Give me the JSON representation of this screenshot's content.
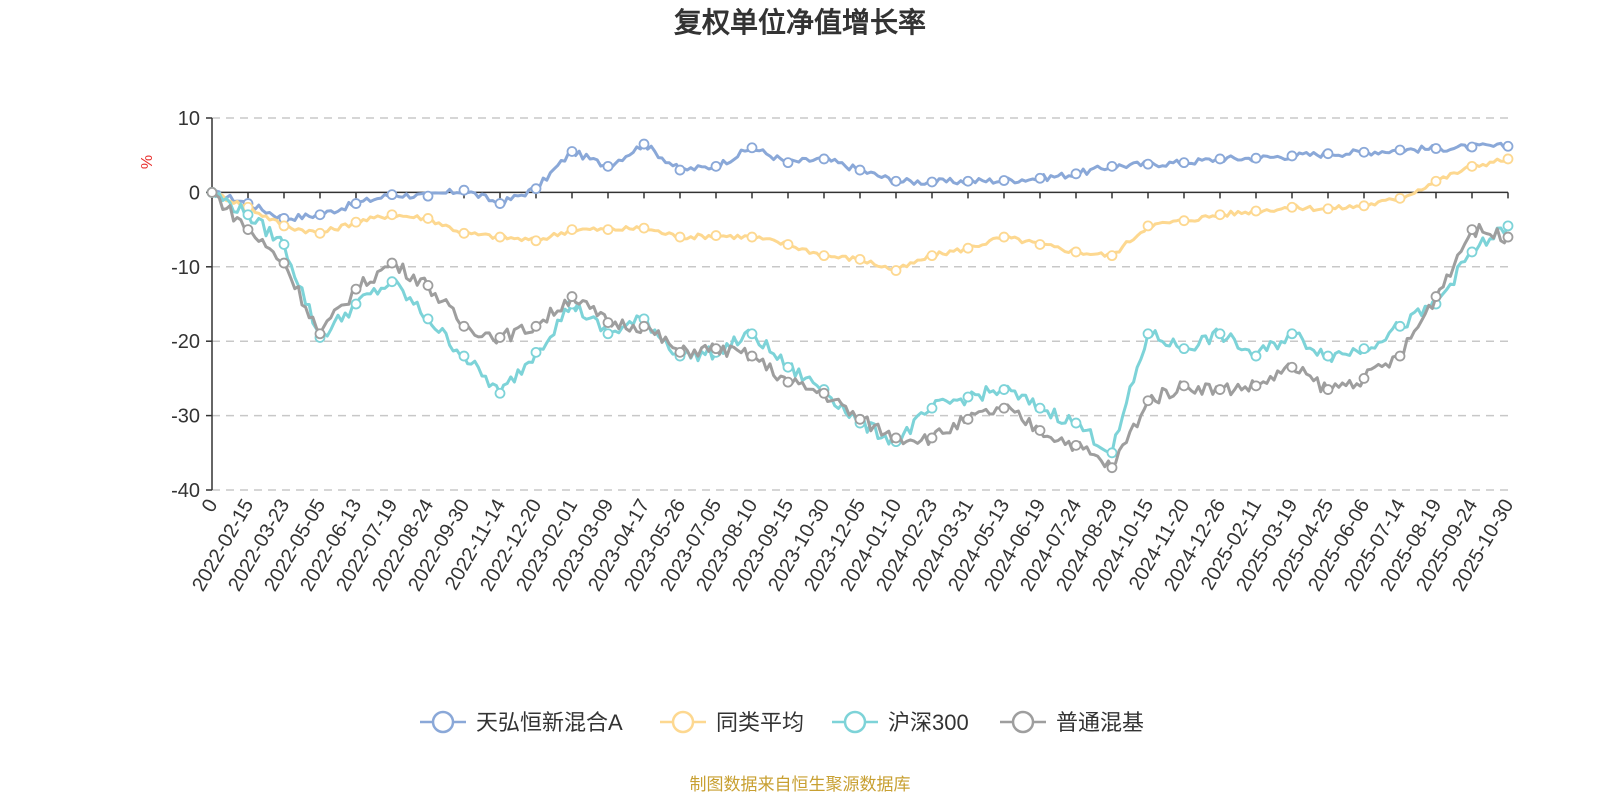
{
  "chart_data": {
    "type": "line",
    "title": "复权单位净值增长率",
    "ylabel": "%",
    "ylim": [
      -40,
      10
    ],
    "yticks": [
      10,
      0,
      -10,
      -20,
      -30,
      -40
    ],
    "grid": true,
    "legend_position": "bottom",
    "categories": [
      "0",
      "2022-02-15",
      "2022-03-23",
      "2022-05-05",
      "2022-06-13",
      "2022-07-19",
      "2022-08-24",
      "2022-09-30",
      "2022-11-14",
      "2022-12-20",
      "2023-02-01",
      "2023-03-09",
      "2023-04-17",
      "2023-05-26",
      "2023-07-05",
      "2023-08-10",
      "2023-09-15",
      "2023-10-30",
      "2023-12-05",
      "2024-01-10",
      "2024-02-23",
      "2024-03-31",
      "2024-05-13",
      "2024-06-19",
      "2024-07-24",
      "2024-08-29",
      "2024-10-15",
      "2024-11-20",
      "2024-12-26",
      "2025-02-11",
      "2025-03-19",
      "2025-04-25",
      "2025-06-06",
      "2025-07-14",
      "2025-08-19",
      "2025-09-24",
      "2025-10-30"
    ],
    "series": [
      {
        "name": "天弘恒新混合A",
        "color": "#8aa8d8",
        "values": [
          0,
          -1.5,
          -3.5,
          -3,
          -1.5,
          -0.3,
          -0.5,
          0.3,
          -1.5,
          0.5,
          5.5,
          3.5,
          6.5,
          3,
          3.5,
          6,
          4,
          4.5,
          3,
          1.5,
          1.4,
          1.5,
          1.6,
          1.9,
          2.5,
          3.5,
          3.8,
          4,
          4.5,
          4.6,
          4.9,
          5.2,
          5.4,
          5.7,
          5.9,
          6.1,
          6.2
        ]
      },
      {
        "name": "同类平均",
        "color": "#fdd890",
        "values": [
          0,
          -2,
          -4.5,
          -5.5,
          -4,
          -3,
          -3.5,
          -5.5,
          -6,
          -6.5,
          -5,
          -5,
          -4.8,
          -6,
          -5.8,
          -6,
          -7,
          -8.5,
          -9,
          -10.5,
          -8.5,
          -7.5,
          -6,
          -7,
          -8,
          -8.5,
          -4.5,
          -3.8,
          -3,
          -2.5,
          -2,
          -2.2,
          -1.8,
          -0.8,
          1.5,
          3.5,
          4.5
        ]
      },
      {
        "name": "沪深300",
        "color": "#7dd3d8",
        "values": [
          0,
          -3,
          -7,
          -19.5,
          -15,
          -12,
          -17,
          -22,
          -27,
          -21.5,
          -15,
          -19,
          -17,
          -22,
          -21.5,
          -19,
          -23.5,
          -26.5,
          -31,
          -33.5,
          -29,
          -27.5,
          -26.5,
          -29,
          -31,
          -35,
          -19,
          -21,
          -19,
          -22,
          -19,
          -22,
          -21,
          -18,
          -15,
          -8,
          -4.5
        ]
      },
      {
        "name": "普通混基",
        "color": "#9e9e9e",
        "values": [
          0,
          -5,
          -9.5,
          -19,
          -13,
          -9.5,
          -12.5,
          -18,
          -19.5,
          -18,
          -14,
          -17.5,
          -18,
          -21.5,
          -21,
          -22,
          -25.5,
          -27,
          -30.5,
          -33,
          -33,
          -30.5,
          -29,
          -32,
          -34,
          -37,
          -28,
          -26,
          -26.5,
          -26,
          -23.5,
          -26.5,
          -25,
          -22,
          -14,
          -5,
          -6
        ]
      }
    ]
  },
  "source_text": "制图数据来自恒生聚源数据库"
}
